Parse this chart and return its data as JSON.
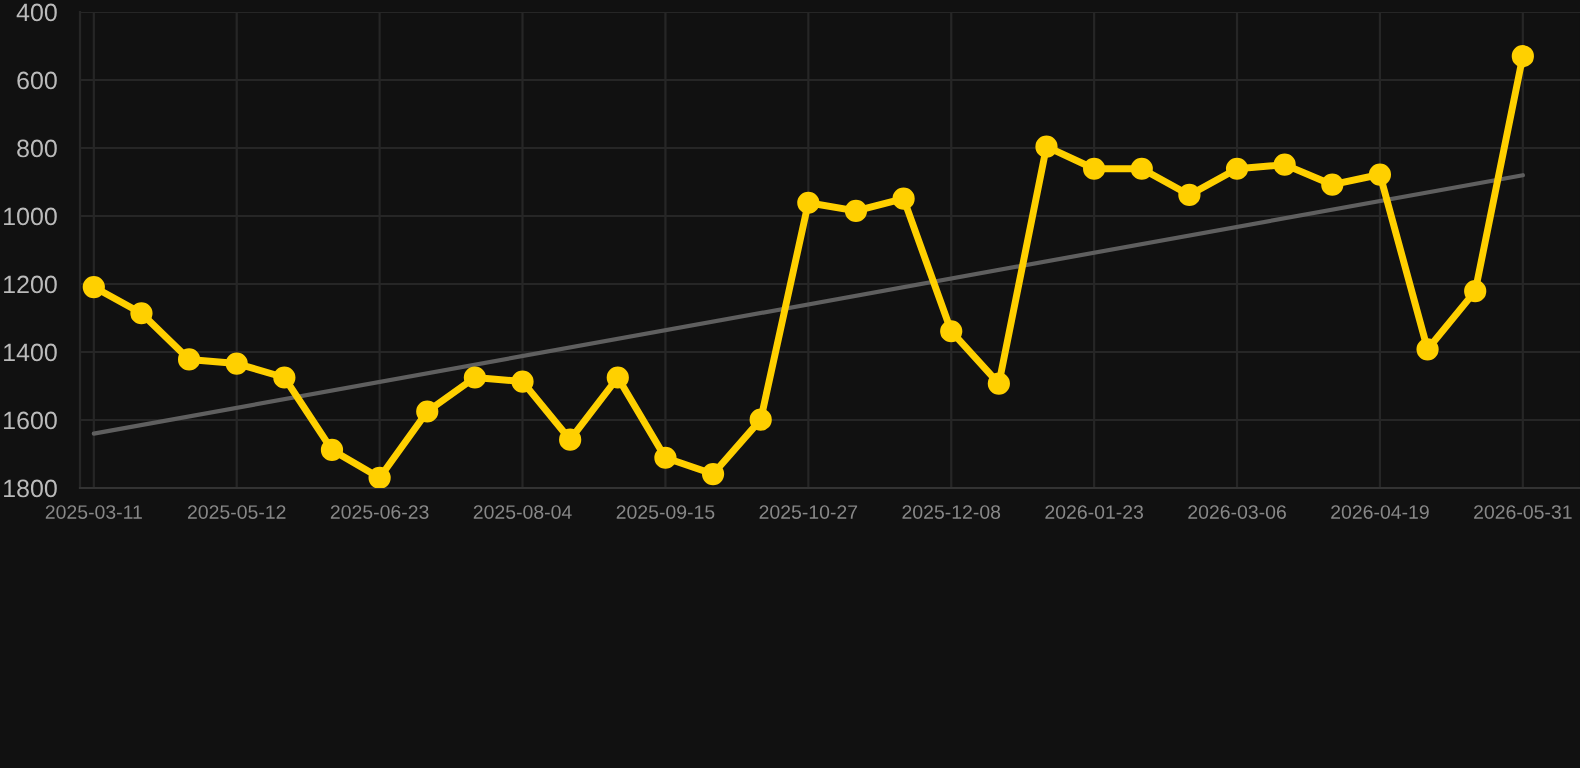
{
  "chart_data": {
    "type": "line",
    "categories": [
      "2025-03-11",
      null,
      null,
      "2025-05-12",
      null,
      null,
      "2025-06-23",
      null,
      null,
      "2025-08-04",
      null,
      null,
      "2025-09-15",
      null,
      null,
      "2025-10-27",
      null,
      null,
      "2025-12-08",
      null,
      null,
      "2026-01-23",
      null,
      null,
      "2026-03-06",
      null,
      null,
      "2026-04-19",
      null,
      null,
      "2026-05-31"
    ],
    "series": [
      {
        "type": "line",
        "color": "#5f5f5f",
        "marker": "none",
        "values": [
          1640,
          null,
          null,
          null,
          null,
          null,
          null,
          null,
          null,
          null,
          null,
          null,
          null,
          null,
          null,
          null,
          null,
          null,
          null,
          null,
          null,
          null,
          null,
          null,
          null,
          null,
          null,
          null,
          null,
          null,
          880
        ]
      },
      {
        "color": "#ffd000",
        "marker": "circle",
        "values": [
          1209,
          1286,
          1422,
          1434,
          1475,
          1688,
          1770,
          1575,
          1475,
          1487,
          1658,
          1475,
          1711,
          1759,
          1599,
          961,
          985,
          949,
          1339,
          1493,
          796,
          861,
          861,
          938,
          861,
          849,
          908,
          878,
          1392,
          1221,
          530
        ]
      }
    ],
    "ylim": [
      1800,
      400
    ],
    "yticks": [
      400,
      600,
      800,
      1000,
      1200,
      1400,
      1600,
      1800
    ],
    "grid": true,
    "line_style": "solid"
  }
}
